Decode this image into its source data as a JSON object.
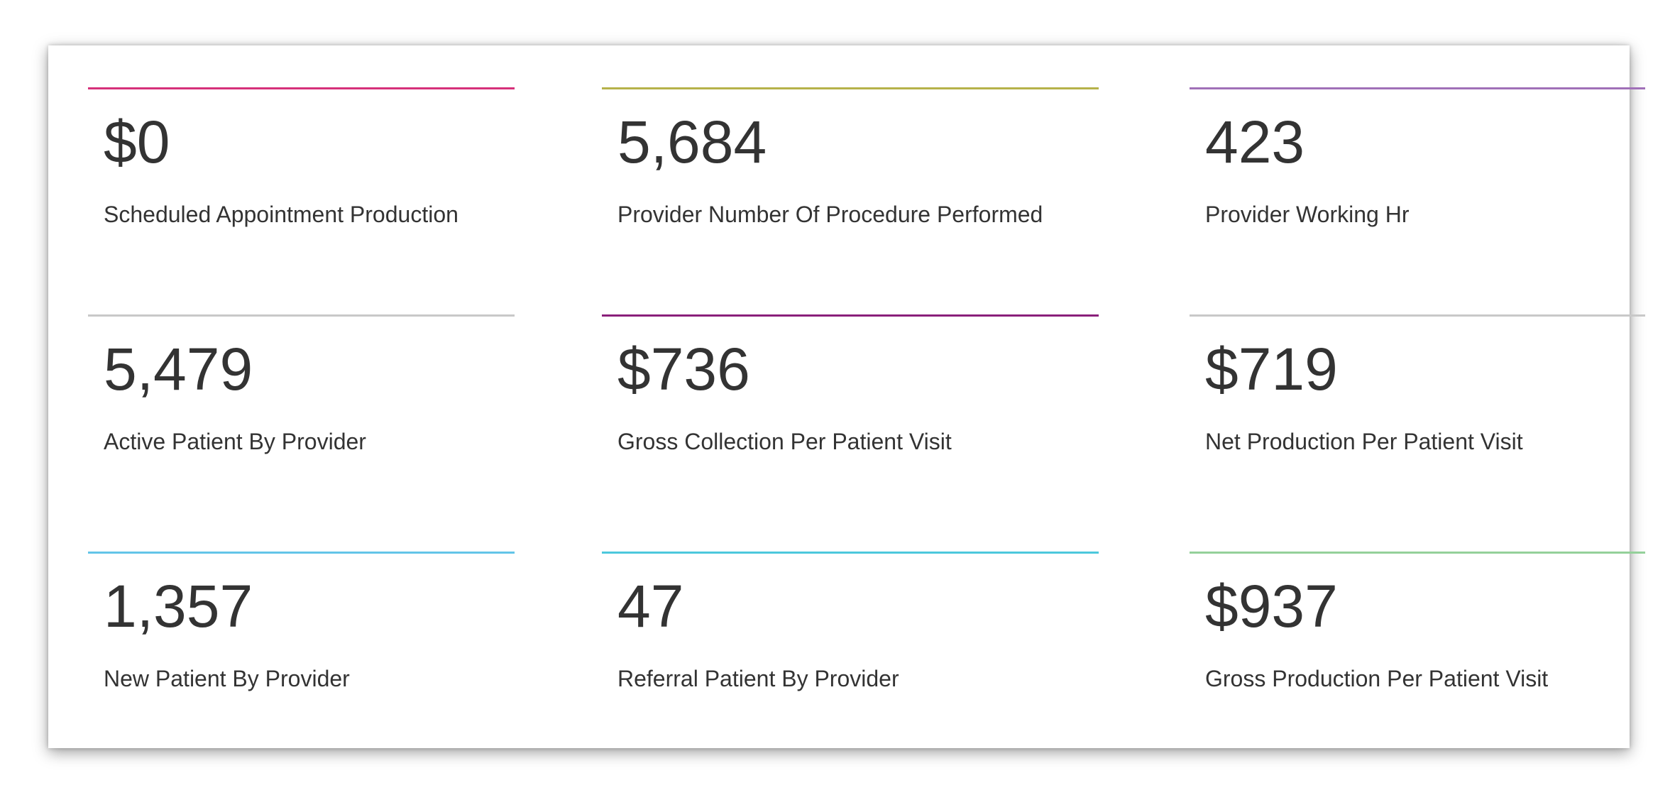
{
  "kpi_tiles": [
    {
      "value": "$0",
      "label": "Scheduled Appointment Production",
      "color": "#d6317a"
    },
    {
      "value": "5,684",
      "label": "Provider Number Of Procedure Performed",
      "color": "#b6b24a"
    },
    {
      "value": "423",
      "label": "Provider Working Hr",
      "color": "#a070b8"
    },
    {
      "value": "5,479",
      "label": "Active Patient By Provider",
      "color": "#c8c8c8"
    },
    {
      "value": "$736",
      "label": "Gross Collection Per Patient Visit",
      "color": "#8a1f7a"
    },
    {
      "value": "$719",
      "label": "Net Production Per Patient Visit",
      "color": "#c8c8c8"
    },
    {
      "value": "1,357",
      "label": "New Patient By Provider",
      "color": "#63c5e8"
    },
    {
      "value": "47",
      "label": "Referral Patient By Provider",
      "color": "#4cc8dc"
    },
    {
      "value": "$937",
      "label": "Gross Production Per Patient Visit",
      "color": "#94d09a"
    }
  ]
}
